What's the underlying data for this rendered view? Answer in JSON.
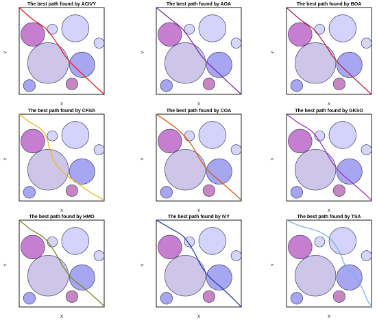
{
  "chart_data": [
    {
      "type": "scatter",
      "title": "The best path found by ACIVY",
      "xlabel": "X",
      "ylabel": "Y",
      "path_color": "#e31a1c",
      "path": [
        [
          0,
          100
        ],
        [
          15,
          87
        ],
        [
          32,
          75
        ],
        [
          45,
          58
        ],
        [
          55,
          43
        ],
        [
          65,
          32
        ],
        [
          78,
          20
        ],
        [
          90,
          9
        ],
        [
          100,
          0
        ]
      ]
    },
    {
      "type": "scatter",
      "title": "The best path found by AOA",
      "xlabel": "X",
      "ylabel": "Y",
      "path_color": "#7b2a9e",
      "path": [
        [
          0,
          100
        ],
        [
          15,
          88
        ],
        [
          30,
          76
        ],
        [
          43,
          59
        ],
        [
          54,
          43
        ],
        [
          65,
          32
        ],
        [
          78,
          20
        ],
        [
          90,
          9
        ],
        [
          100,
          0
        ]
      ]
    },
    {
      "type": "scatter",
      "title": "The best path found by BOA",
      "xlabel": "X",
      "ylabel": "Y",
      "path_color": "#b0213f",
      "path": [
        [
          0,
          100
        ],
        [
          15,
          87
        ],
        [
          32,
          75
        ],
        [
          45,
          58
        ],
        [
          55,
          43
        ],
        [
          65,
          32
        ],
        [
          78,
          20
        ],
        [
          90,
          9
        ],
        [
          100,
          0
        ]
      ]
    },
    {
      "type": "scatter",
      "title": "The best path found by CFish",
      "xlabel": "X",
      "ylabel": "Y",
      "path_color": "#f2b31b",
      "path": [
        [
          0,
          100
        ],
        [
          12,
          91
        ],
        [
          24,
          84
        ],
        [
          32,
          74
        ],
        [
          36,
          60
        ],
        [
          42,
          44
        ],
        [
          54,
          31
        ],
        [
          68,
          21
        ],
        [
          82,
          11
        ],
        [
          100,
          1
        ]
      ]
    },
    {
      "type": "scatter",
      "title": "The best path found by COA",
      "xlabel": "X",
      "ylabel": "Y",
      "path_color": "#d8560f",
      "secondary_color": "#9a8a1a",
      "path": [
        [
          0,
          100
        ],
        [
          15,
          90
        ],
        [
          28,
          80
        ],
        [
          42,
          64
        ],
        [
          52,
          47
        ],
        [
          62,
          34
        ],
        [
          76,
          22
        ],
        [
          90,
          10
        ],
        [
          100,
          1
        ]
      ]
    },
    {
      "type": "scatter",
      "title": "The best path found by GKSO",
      "xlabel": "X",
      "ylabel": "Y",
      "path_color": "#9b2fc1",
      "path": [
        [
          0,
          100
        ],
        [
          14,
          90
        ],
        [
          30,
          80
        ],
        [
          42,
          64
        ],
        [
          52,
          47
        ],
        [
          62,
          34
        ],
        [
          76,
          22
        ],
        [
          90,
          10
        ],
        [
          100,
          1
        ]
      ]
    },
    {
      "type": "scatter",
      "title": "The best path found by HMO",
      "xlabel": "X",
      "ylabel": "Y",
      "path_color": "#6e8a1e",
      "path": [
        [
          0,
          100
        ],
        [
          14,
          89
        ],
        [
          30,
          79
        ],
        [
          42,
          63
        ],
        [
          52,
          46
        ],
        [
          62,
          33
        ],
        [
          76,
          22
        ],
        [
          90,
          10
        ],
        [
          100,
          1
        ]
      ]
    },
    {
      "type": "scatter",
      "title": "The best path found by IVY",
      "xlabel": "X",
      "ylabel": "Y",
      "path_color": "#1f3fa5",
      "path": [
        [
          0,
          100
        ],
        [
          16,
          91
        ],
        [
          32,
          81
        ],
        [
          44,
          64
        ],
        [
          53,
          47
        ],
        [
          63,
          34
        ],
        [
          77,
          22
        ],
        [
          90,
          10
        ],
        [
          100,
          0
        ]
      ]
    },
    {
      "type": "scatter",
      "title": "The best path found by TSA",
      "xlabel": "X",
      "ylabel": "Y",
      "path_color": "#7ab0e0",
      "path": [
        [
          0,
          100
        ],
        [
          14,
          94
        ],
        [
          28,
          90
        ],
        [
          40,
          86
        ],
        [
          52,
          78
        ],
        [
          62,
          64
        ],
        [
          70,
          46
        ],
        [
          80,
          36
        ],
        [
          88,
          24
        ],
        [
          95,
          8
        ],
        [
          100,
          1
        ]
      ]
    }
  ],
  "obstacles": [
    {
      "cx": 16,
      "cy": 69,
      "r": 14,
      "color": "#c77ed1"
    },
    {
      "cx": 39,
      "cy": 75,
      "r": 6,
      "color": "#d6d6fa"
    },
    {
      "cx": 66,
      "cy": 76,
      "r": 16,
      "color": "#d3d3fb"
    },
    {
      "cx": 94,
      "cy": 59,
      "r": 6,
      "color": "#d6d6fa"
    },
    {
      "cx": 34,
      "cy": 36,
      "r": 24,
      "color": "#cdc6e9"
    },
    {
      "cx": 74,
      "cy": 34,
      "r": 15,
      "color": "#a7a6f3"
    },
    {
      "cx": 12,
      "cy": 10,
      "r": 7,
      "color": "#a7a6f3"
    },
    {
      "cx": 62,
      "cy": 12,
      "r": 7,
      "color": "#c786c3"
    }
  ]
}
